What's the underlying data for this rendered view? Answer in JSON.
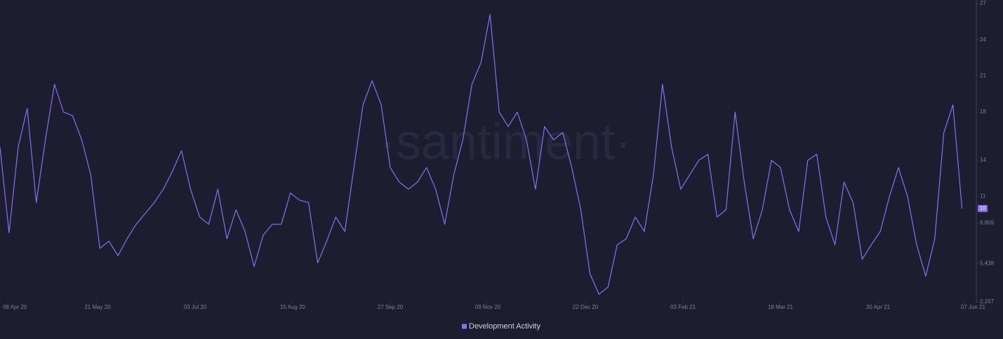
{
  "chart_data": {
    "type": "line",
    "watermark": "·santiment·",
    "x": [
      "2020-04-08",
      "2020-04-12",
      "2020-04-16",
      "2020-04-20",
      "2020-04-24",
      "2020-04-28",
      "2020-05-02",
      "2020-05-06",
      "2020-05-10",
      "2020-05-14",
      "2020-05-18",
      "2020-05-22",
      "2020-05-26",
      "2020-05-30",
      "2020-06-03",
      "2020-06-07",
      "2020-06-11",
      "2020-06-15",
      "2020-06-19",
      "2020-06-23",
      "2020-06-27",
      "2020-07-01",
      "2020-07-05",
      "2020-07-09",
      "2020-07-13",
      "2020-07-17",
      "2020-07-21",
      "2020-07-25",
      "2020-07-29",
      "2020-08-02",
      "2020-08-06",
      "2020-08-10",
      "2020-08-14",
      "2020-08-18",
      "2020-08-22",
      "2020-08-26",
      "2020-08-30",
      "2020-09-03",
      "2020-09-07",
      "2020-09-11",
      "2020-09-15",
      "2020-09-19",
      "2020-09-23",
      "2020-09-27",
      "2020-10-01",
      "2020-10-05",
      "2020-10-09",
      "2020-10-13",
      "2020-10-17",
      "2020-10-21",
      "2020-10-25",
      "2020-10-29",
      "2020-11-02",
      "2020-11-06",
      "2020-11-10",
      "2020-11-14",
      "2020-11-18",
      "2020-11-22",
      "2020-11-26",
      "2020-11-30",
      "2020-12-04",
      "2020-12-08",
      "2020-12-12",
      "2020-12-16",
      "2020-12-20",
      "2020-12-24",
      "2020-12-28",
      "2021-01-01",
      "2021-01-05",
      "2021-01-09",
      "2021-01-13",
      "2021-01-17",
      "2021-01-21",
      "2021-01-25",
      "2021-01-29",
      "2021-02-02",
      "2021-02-06",
      "2021-02-10",
      "2021-02-14",
      "2021-02-18",
      "2021-02-22",
      "2021-02-26",
      "2021-03-02",
      "2021-03-06",
      "2021-03-10",
      "2021-03-14",
      "2021-03-18",
      "2021-03-22",
      "2021-03-26",
      "2021-03-30",
      "2021-04-03",
      "2021-04-07",
      "2021-04-11",
      "2021-04-15",
      "2021-04-19",
      "2021-04-23",
      "2021-04-27",
      "2021-05-01",
      "2021-05-05",
      "2021-05-09",
      "2021-05-13",
      "2021-05-17",
      "2021-05-21",
      "2021-05-25",
      "2021-05-29",
      "2021-06-02",
      "2021-06-06"
    ],
    "series": [
      {
        "name": "Development Activity",
        "color": "#8c6cf7",
        "values": [
          15.1,
          8.0,
          15.1,
          18.3,
          10.5,
          15.7,
          20.3,
          18.0,
          17.7,
          15.7,
          12.8,
          6.7,
          7.3,
          6.1,
          7.5,
          8.7,
          9.6,
          10.5,
          11.6,
          13.1,
          14.8,
          11.6,
          9.3,
          8.7,
          11.6,
          7.5,
          9.9,
          8.1,
          5.2,
          7.8,
          8.7,
          8.7,
          11.3,
          10.7,
          10.5,
          5.5,
          7.3,
          9.3,
          8.1,
          13.4,
          18.6,
          20.6,
          18.6,
          13.4,
          12.2,
          11.6,
          12.2,
          13.4,
          11.6,
          8.7,
          12.8,
          15.7,
          20.3,
          22.1,
          26.1,
          18.0,
          16.8,
          18.0,
          15.7,
          11.6,
          16.8,
          15.7,
          16.3,
          13.4,
          9.9,
          4.6,
          2.9,
          3.5,
          7.0,
          7.5,
          9.3,
          8.1,
          12.8,
          20.3,
          15.1,
          11.6,
          12.8,
          14.0,
          14.5,
          9.3,
          9.9,
          18.0,
          12.2,
          7.5,
          9.9,
          14.0,
          13.4,
          9.9,
          8.1,
          14.0,
          14.5,
          9.3,
          7.0,
          12.2,
          10.5,
          5.8,
          7.0,
          8.1,
          11.0,
          13.4,
          11.0,
          7.0,
          4.4,
          7.5,
          16.3,
          18.6,
          10
        ]
      }
    ],
    "xlim": [
      "2020-04-08",
      "2021-06-12"
    ],
    "xticks": [
      {
        "value": "2020-04-08",
        "label": "08 Apr 20"
      },
      {
        "value": "2020-05-21",
        "label": "21 May 20"
      },
      {
        "value": "2020-07-03",
        "label": "03 Jul 20"
      },
      {
        "value": "2020-08-15",
        "label": "15 Aug 20"
      },
      {
        "value": "2020-09-27",
        "label": "27 Sep 20"
      },
      {
        "value": "2020-11-09",
        "label": "09 Nov 20"
      },
      {
        "value": "2020-12-22",
        "label": "22 Dec 20"
      },
      {
        "value": "2021-02-03",
        "label": "03 Feb 21"
      },
      {
        "value": "2021-03-18",
        "label": "18 Mar 21"
      },
      {
        "value": "2021-04-30",
        "label": "30 Apr 21"
      },
      {
        "value": "2021-06-07",
        "label": "07 Jun 21"
      }
    ],
    "ylim": [
      2.267,
      27
    ],
    "yticks": [
      27,
      24,
      21,
      18,
      14,
      11,
      8.809,
      5.438,
      2.267
    ],
    "legend": "bottom"
  }
}
